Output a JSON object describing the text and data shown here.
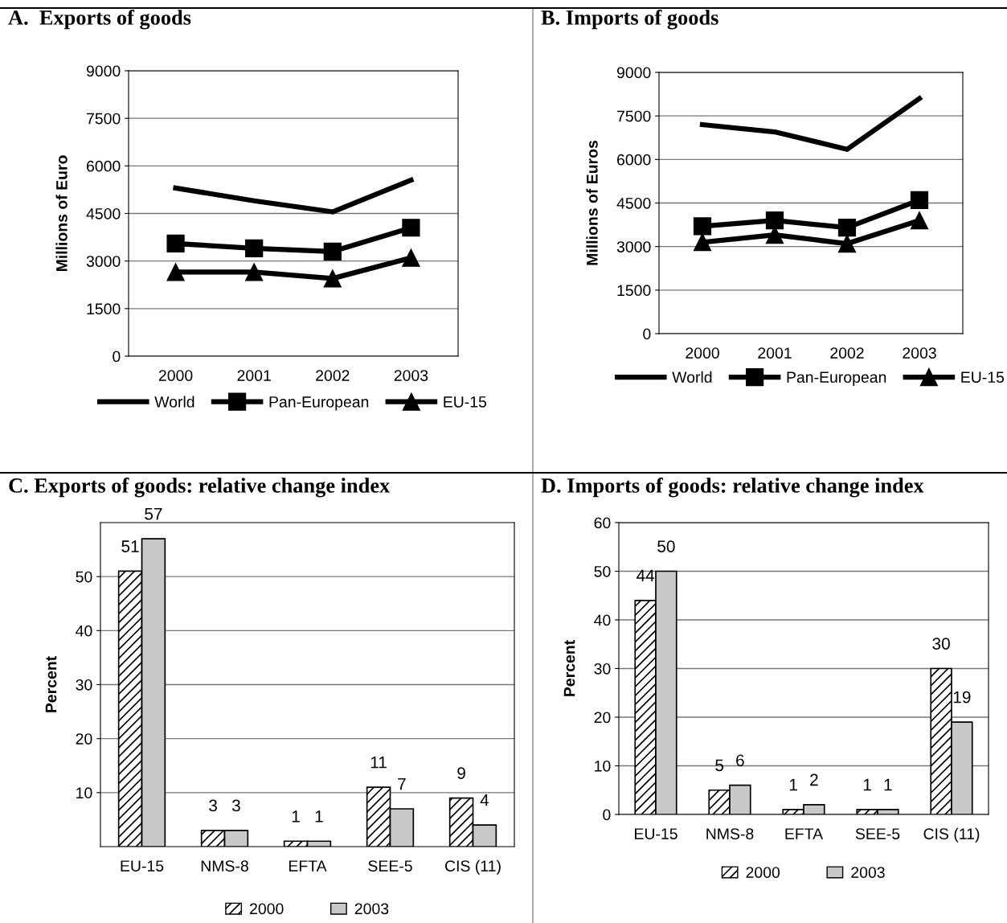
{
  "chart_data": [
    {
      "type": "line",
      "title": "A.  Exports of goods",
      "ylabel": "Millions of Euro",
      "categories": [
        "2000",
        "2001",
        "2002",
        "2003"
      ],
      "ylim": [
        0,
        9000
      ],
      "yticks": [
        0,
        1500,
        3000,
        4500,
        6000,
        7500,
        9000
      ],
      "grid": "y",
      "legend": "bottom",
      "series": [
        {
          "name": "World",
          "color": "#000000",
          "marker": "none",
          "values": [
            5300,
            4900,
            4550,
            5550
          ]
        },
        {
          "name": "Pan-European",
          "color": "#000000",
          "marker": "square",
          "values": [
            3550,
            3400,
            3300,
            4050
          ]
        },
        {
          "name": "EU-15",
          "color": "#000000",
          "marker": "triangle",
          "values": [
            2650,
            2650,
            2450,
            3100
          ]
        }
      ]
    },
    {
      "type": "line",
      "title": "B. Imports of goods",
      "ylabel": "Millions of Euros",
      "categories": [
        "2000",
        "2001",
        "2002",
        "2003"
      ],
      "ylim": [
        0,
        9000
      ],
      "yticks": [
        0,
        1500,
        3000,
        4500,
        6000,
        7500,
        9000
      ],
      "grid": "y",
      "legend": "bottom",
      "series": [
        {
          "name": "World",
          "color": "#000000",
          "marker": "none",
          "values": [
            7200,
            6950,
            6350,
            8100
          ]
        },
        {
          "name": "Pan-European",
          "color": "#000000",
          "marker": "square",
          "values": [
            3700,
            3900,
            3650,
            4600
          ]
        },
        {
          "name": "EU-15",
          "color": "#000000",
          "marker": "triangle",
          "values": [
            3150,
            3400,
            3100,
            3900
          ]
        }
      ]
    },
    {
      "type": "bar",
      "title": "C. Exports of goods: relative change index",
      "ylabel": "Percent",
      "categories": [
        "EU-15",
        "NMS-8",
        "EFTA",
        "SEE-5",
        "CIS (11)"
      ],
      "ylim": [
        0,
        60
      ],
      "yticks": [
        10,
        20,
        30,
        40,
        50
      ],
      "grid": "y",
      "legend": "bottom",
      "data_labels": true,
      "series": [
        {
          "name": "2000",
          "color": "#000000",
          "values": [
            51,
            3,
            1,
            11,
            9
          ]
        },
        {
          "name": "2003",
          "color": "#c8c8c8",
          "values": [
            57,
            3,
            1,
            7,
            4
          ]
        }
      ]
    },
    {
      "type": "bar",
      "title": "D. Imports of goods: relative change index",
      "ylabel": "Percent",
      "categories": [
        "EU-15",
        "NMS-8",
        "EFTA",
        "SEE-5",
        "CIS (11)"
      ],
      "ylim": [
        0,
        60
      ],
      "yticks": [
        0,
        10,
        20,
        30,
        40,
        50,
        60
      ],
      "grid": "y",
      "legend": "bottom",
      "data_labels": true,
      "series": [
        {
          "name": "2000",
          "color": "#000000",
          "values": [
            44,
            5,
            1,
            1,
            30
          ]
        },
        {
          "name": "2003",
          "color": "#c8c8c8",
          "values": [
            50,
            6,
            2,
            1,
            19
          ]
        }
      ]
    }
  ]
}
